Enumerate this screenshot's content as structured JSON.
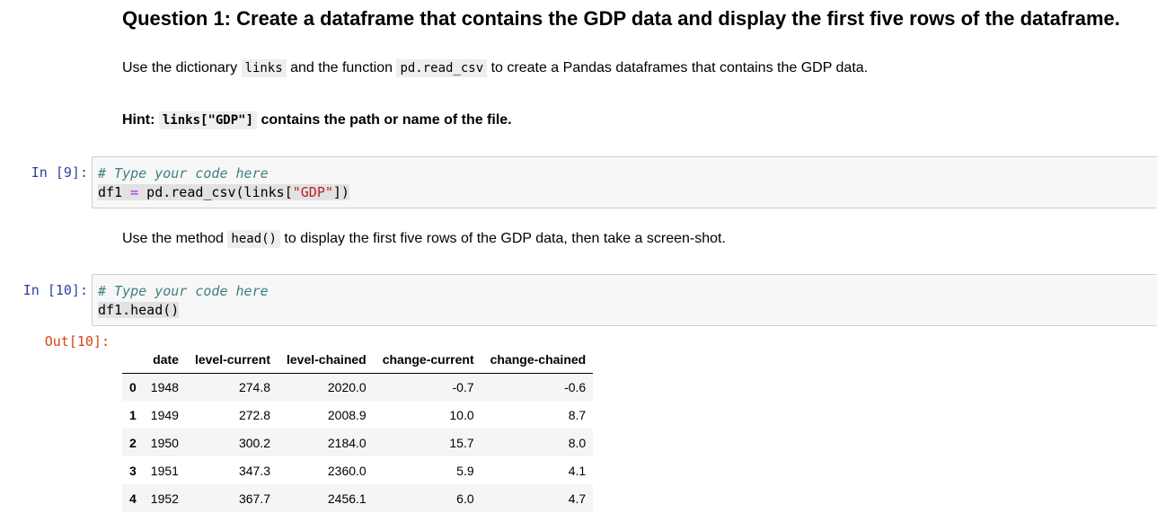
{
  "question": {
    "title": "Question 1: Create a dataframe that contains the GDP data and display the first five rows of the dataframe.",
    "instruction": {
      "pre": "Use the dictionary ",
      "code1": "links",
      "mid": " and the function ",
      "code2": "pd.read_csv",
      "post": " to create a Pandas dataframes that contains the GDP data."
    },
    "hint": {
      "pre": "Hint: ",
      "code": "links[\"GDP\"]",
      "post": " contains the path or name of the file."
    }
  },
  "cell1": {
    "prompt": "In [9]:",
    "comment": "# Type your code here",
    "line2_var": "df1",
    "line2_op": "=",
    "line2_call": " pd.read_csv(links[",
    "line2_str": "\"GDP\"",
    "line2_end": "])"
  },
  "instruction2": {
    "pre": "Use the method ",
    "code": "head()",
    "post": " to display the first five rows of the GDP data, then take a screen-shot."
  },
  "cell2": {
    "prompt": "In [10]:",
    "comment": "# Type your code here",
    "line2": "df1.head()"
  },
  "output": {
    "prompt": "Out[10]:",
    "columns": [
      "date",
      "level-current",
      "level-chained",
      "change-current",
      "change-chained"
    ],
    "rows": [
      [
        "0",
        "1948",
        "274.8",
        "2020.0",
        "-0.7",
        "-0.6"
      ],
      [
        "1",
        "1949",
        "272.8",
        "2008.9",
        "10.0",
        "8.7"
      ],
      [
        "2",
        "1950",
        "300.2",
        "2184.0",
        "15.7",
        "8.0"
      ],
      [
        "3",
        "1951",
        "347.3",
        "2360.0",
        "5.9",
        "4.1"
      ],
      [
        "4",
        "1952",
        "367.7",
        "2456.1",
        "6.0",
        "4.7"
      ]
    ]
  }
}
